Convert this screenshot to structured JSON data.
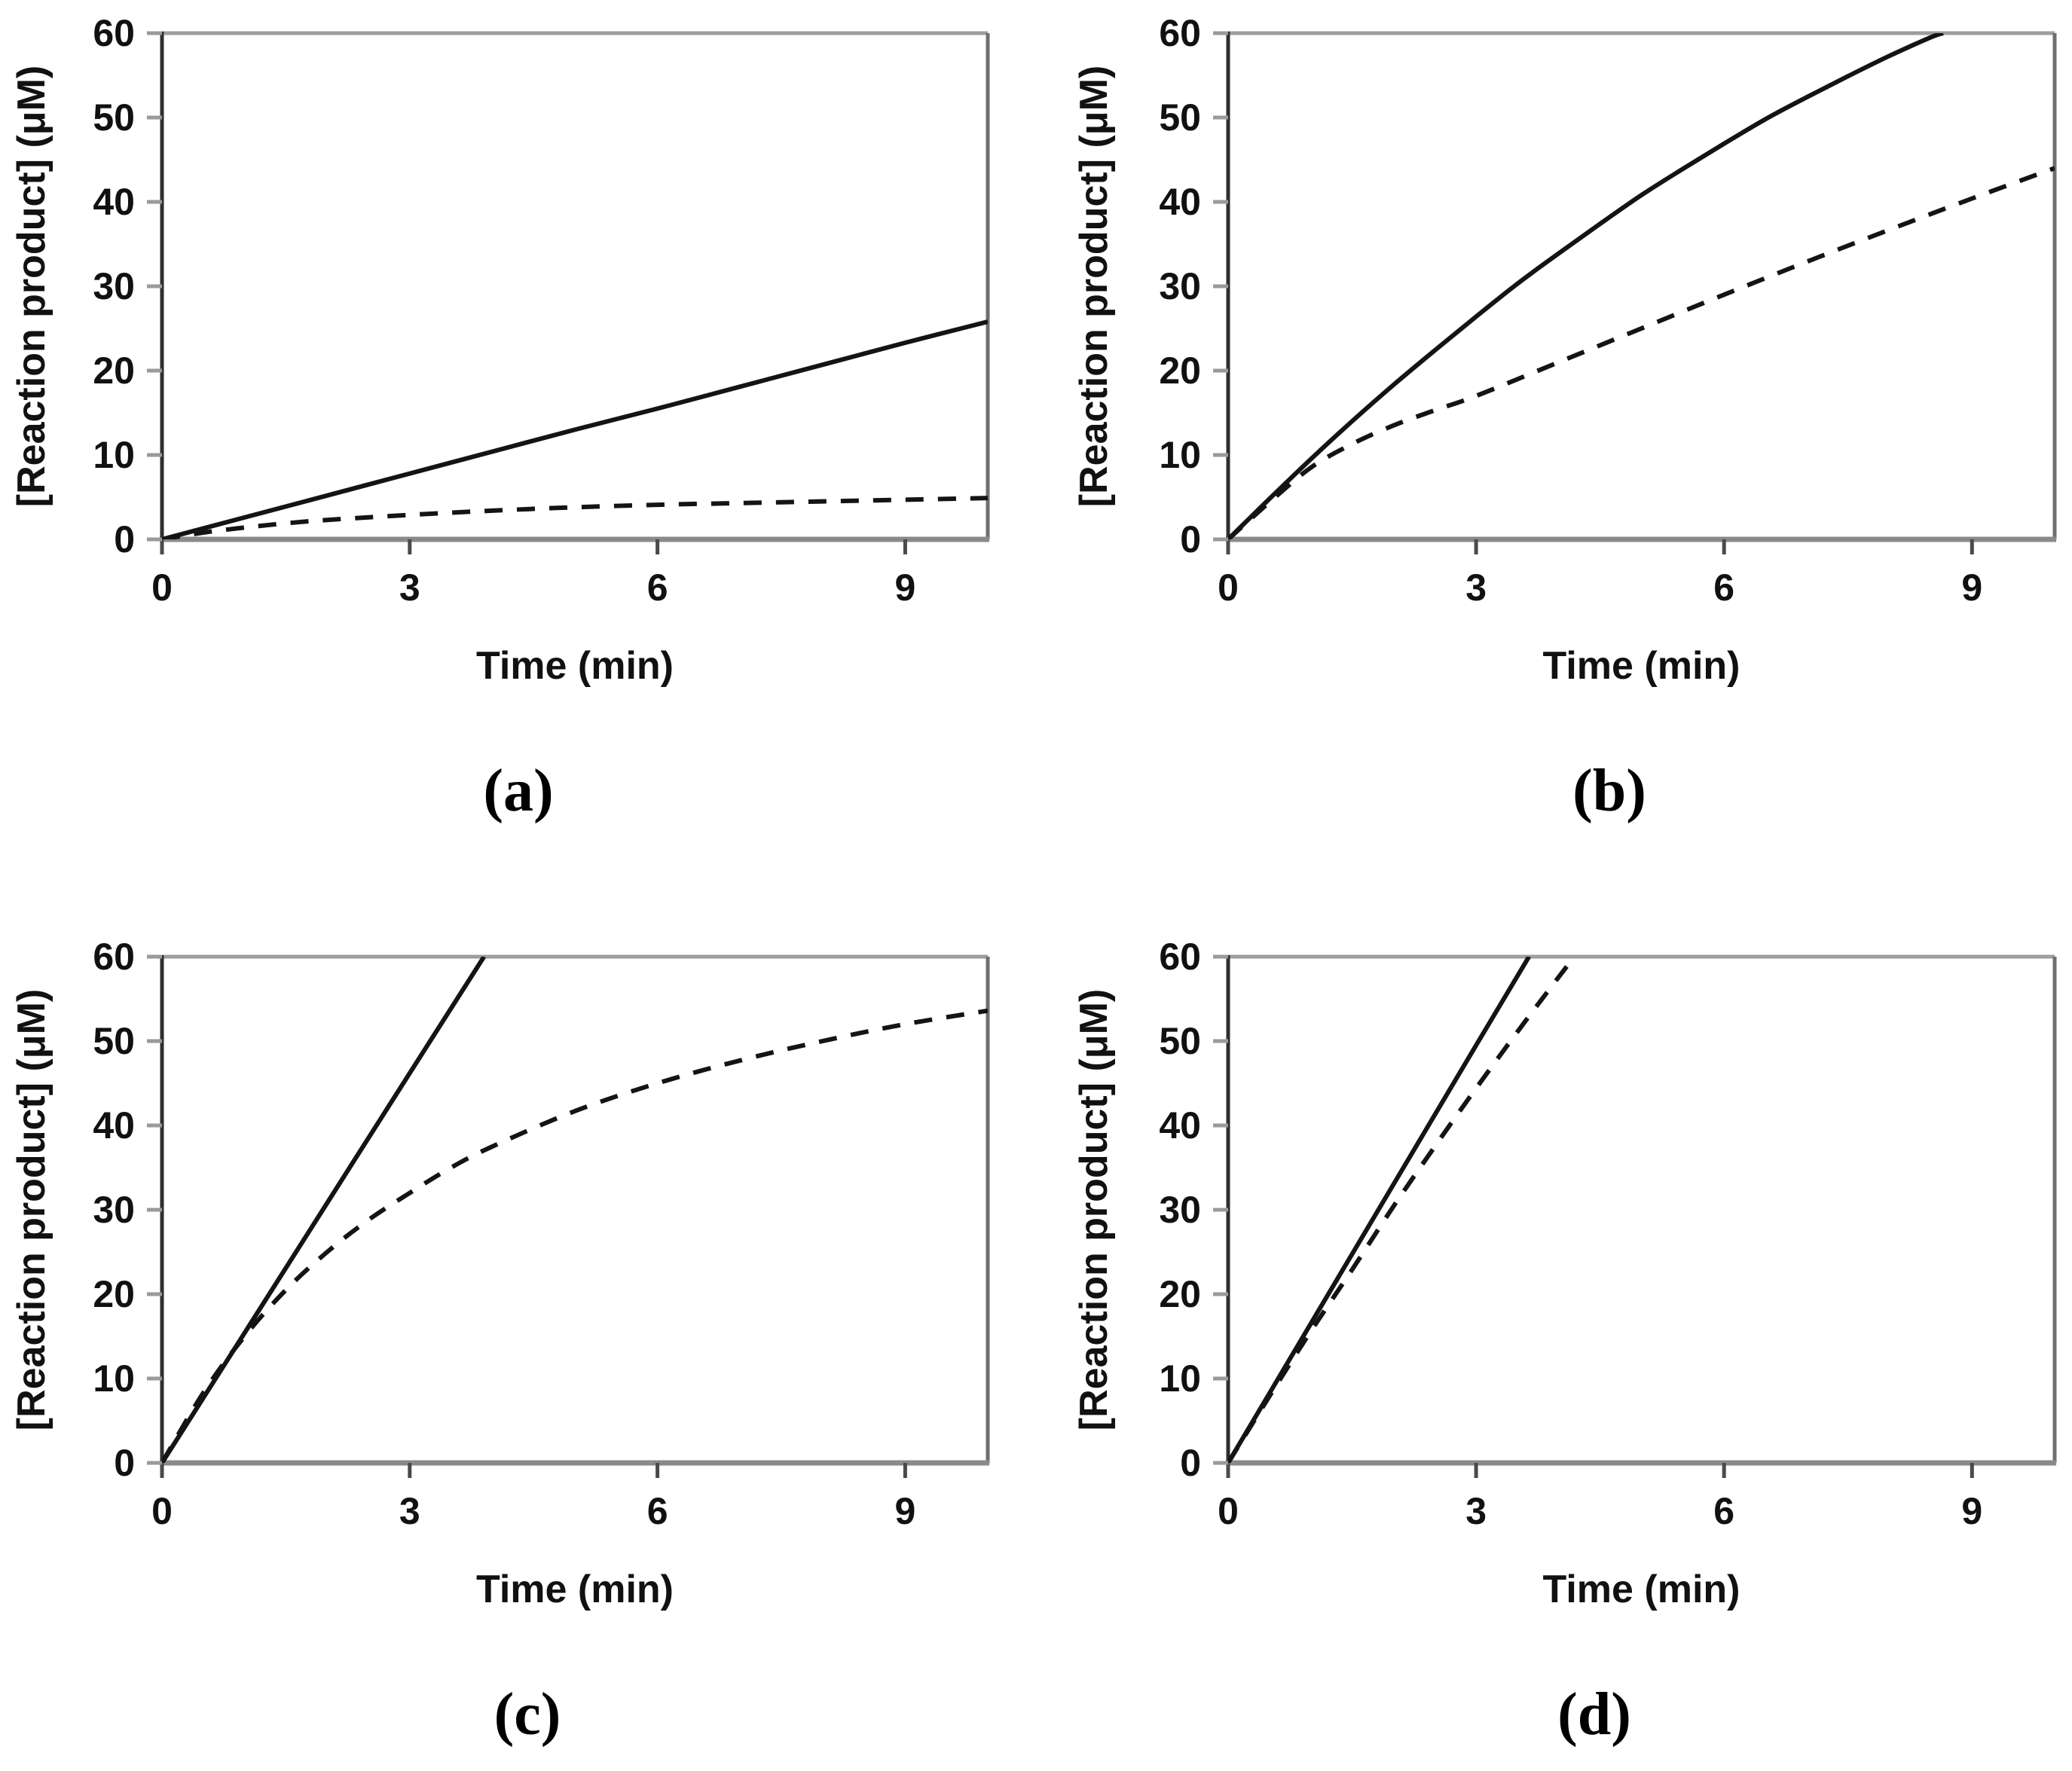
{
  "figure": {
    "background_color": "#ffffff",
    "curve_color": "#141414",
    "axis_color_left": "#2e2e2e",
    "axis_color_bottom": "#8a8a8a",
    "axis_color_top": "#9d9d9d",
    "axis_color_right": "#6f6f6f",
    "tick_color_x": "#4a4a4a",
    "tick_color_y": "#9a9a9a"
  },
  "chart_data": [
    {
      "id": "a",
      "type": "line",
      "panel_label": "(a)",
      "xlabel": "Time (min)",
      "ylabel": "[Reaction product] (μM)",
      "xlim": [
        0,
        10
      ],
      "ylim": [
        0,
        60
      ],
      "xticks": [
        0,
        3,
        6,
        9
      ],
      "yticks": [
        0,
        10,
        20,
        30,
        40,
        50,
        60
      ],
      "grid": false,
      "series": [
        {
          "name": "solid",
          "line_style": "solid",
          "points": [
            [
              0,
              0
            ],
            [
              1,
              2.6
            ],
            [
              2,
              5.2
            ],
            [
              3,
              7.8
            ],
            [
              4,
              10.4
            ],
            [
              5,
              13.0
            ],
            [
              6,
              15.5
            ],
            [
              7,
              18.1
            ],
            [
              8,
              20.7
            ],
            [
              9,
              23.3
            ],
            [
              10,
              25.8
            ]
          ]
        },
        {
          "name": "dashed",
          "line_style": "dashed",
          "points": [
            [
              0,
              0
            ],
            [
              0.5,
              0.8
            ],
            [
              1,
              1.4
            ],
            [
              1.5,
              1.9
            ],
            [
              2,
              2.3
            ],
            [
              3,
              2.9
            ],
            [
              4,
              3.4
            ],
            [
              5,
              3.8
            ],
            [
              6,
              4.1
            ],
            [
              7,
              4.3
            ],
            [
              8,
              4.5
            ],
            [
              9,
              4.7
            ],
            [
              10,
              4.9
            ]
          ]
        }
      ]
    },
    {
      "id": "b",
      "type": "line",
      "panel_label": "(b)",
      "xlabel": "Time (min)",
      "ylabel": "[Reaction product] (μM)",
      "xlim": [
        0,
        10
      ],
      "ylim": [
        0,
        60
      ],
      "xticks": [
        0,
        3,
        6,
        9
      ],
      "yticks": [
        0,
        10,
        20,
        30,
        40,
        50,
        60
      ],
      "grid": false,
      "series": [
        {
          "name": "solid",
          "line_style": "solid",
          "points": [
            [
              0,
              0
            ],
            [
              0.5,
              4.8
            ],
            [
              1,
              9.5
            ],
            [
              1.5,
              14.0
            ],
            [
              2,
              18.3
            ],
            [
              2.5,
              22.4
            ],
            [
              3,
              26.4
            ],
            [
              3.5,
              30.3
            ],
            [
              4,
              33.9
            ],
            [
              4.5,
              37.4
            ],
            [
              5,
              40.8
            ],
            [
              5.5,
              43.9
            ],
            [
              6,
              46.9
            ],
            [
              6.5,
              49.8
            ],
            [
              7,
              52.4
            ],
            [
              7.5,
              54.9
            ],
            [
              8,
              57.3
            ],
            [
              8.5,
              59.5
            ],
            [
              8.65,
              60
            ]
          ]
        },
        {
          "name": "dashed",
          "line_style": "dashed",
          "points": [
            [
              0,
              0
            ],
            [
              0.5,
              4.4
            ],
            [
              1,
              8.5
            ],
            [
              1.5,
              11.3
            ],
            [
              2,
              13.5
            ],
            [
              2.5,
              15.3
            ],
            [
              3,
              17.0
            ],
            [
              4,
              21.0
            ],
            [
              5,
              25.0
            ],
            [
              6,
              29.0
            ],
            [
              7,
              32.9
            ],
            [
              8,
              36.7
            ],
            [
              9,
              40.4
            ],
            [
              10,
              44.0
            ]
          ]
        }
      ]
    },
    {
      "id": "c",
      "type": "line",
      "panel_label": "(c)",
      "xlabel": "Time (min)",
      "ylabel": "[Reaction product] (μM)",
      "xlim": [
        0,
        10
      ],
      "ylim": [
        0,
        60
      ],
      "xticks": [
        0,
        3,
        6,
        9
      ],
      "yticks": [
        0,
        10,
        20,
        30,
        40,
        50,
        60
      ],
      "grid": false,
      "series": [
        {
          "name": "solid",
          "line_style": "solid",
          "points": [
            [
              0,
              0
            ],
            [
              1,
              15.4
            ],
            [
              2,
              30.8
            ],
            [
              3,
              46.2
            ],
            [
              3.9,
              60
            ]
          ]
        },
        {
          "name": "dashed",
          "line_style": "dashed",
          "points": [
            [
              0,
              0
            ],
            [
              0.5,
              8.3
            ],
            [
              1,
              15.0
            ],
            [
              1.5,
              20.5
            ],
            [
              2,
              25.0
            ],
            [
              2.5,
              28.8
            ],
            [
              3,
              32.0
            ],
            [
              3.5,
              35.0
            ],
            [
              4,
              37.5
            ],
            [
              5,
              41.7
            ],
            [
              6,
              45.0
            ],
            [
              7,
              47.7
            ],
            [
              8,
              50.0
            ],
            [
              9,
              52.0
            ],
            [
              10,
              53.6
            ]
          ]
        }
      ]
    },
    {
      "id": "d",
      "type": "line",
      "panel_label": "(d)",
      "xlabel": "Time (min)",
      "ylabel": "[Reaction product] (μM)",
      "xlim": [
        0,
        10
      ],
      "ylim": [
        0,
        60
      ],
      "xticks": [
        0,
        3,
        6,
        9
      ],
      "yticks": [
        0,
        10,
        20,
        30,
        40,
        50,
        60
      ],
      "grid": false,
      "series": [
        {
          "name": "solid",
          "line_style": "solid",
          "points": [
            [
              0,
              0
            ],
            [
              1,
              16.5
            ],
            [
              2,
              33.0
            ],
            [
              3,
              49.5
            ],
            [
              3.64,
              60
            ]
          ]
        },
        {
          "name": "dashed",
          "line_style": "dashed",
          "points": [
            [
              0,
              0
            ],
            [
              0.5,
              7.9
            ],
            [
              1,
              15.6
            ],
            [
              1.5,
              22.9
            ],
            [
              2,
              30.4
            ],
            [
              2.5,
              37.5
            ],
            [
              3,
              44.4
            ],
            [
              3.5,
              51.1
            ],
            [
              4,
              57.6
            ],
            [
              4.19,
              60
            ]
          ]
        }
      ]
    }
  ]
}
